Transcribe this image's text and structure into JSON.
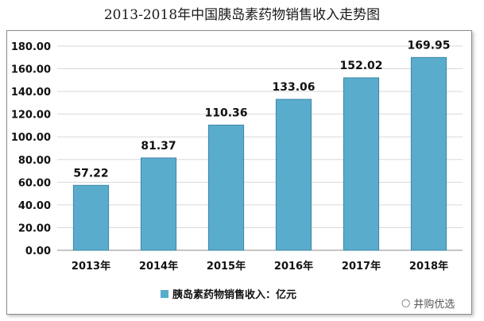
{
  "title": "2013-2018年中国胰岛素药物销售收入走势图",
  "watermark": "井购优选",
  "colors": {
    "bar": "#5aaccd",
    "bar_edge": "#3b86a8",
    "grid": "#d9d9d9"
  },
  "chart_data": {
    "type": "bar",
    "categories": [
      "2013年",
      "2014年",
      "2015年",
      "2016年",
      "2017年",
      "2018年"
    ],
    "series": [
      {
        "name": "胰岛素药物销售收入：亿元",
        "values": [
          57.22,
          81.37,
          110.36,
          133.06,
          152.02,
          169.95
        ]
      }
    ],
    "value_labels": [
      "57.22",
      "81.37",
      "110.36",
      "133.06",
      "152.02",
      "169.95"
    ],
    "yticks": [
      "0.00",
      "20.00",
      "40.00",
      "60.00",
      "80.00",
      "100.00",
      "120.00",
      "140.00",
      "160.00",
      "180.00"
    ],
    "ylim": [
      0,
      180
    ],
    "grid": true,
    "legend": "bottom"
  }
}
